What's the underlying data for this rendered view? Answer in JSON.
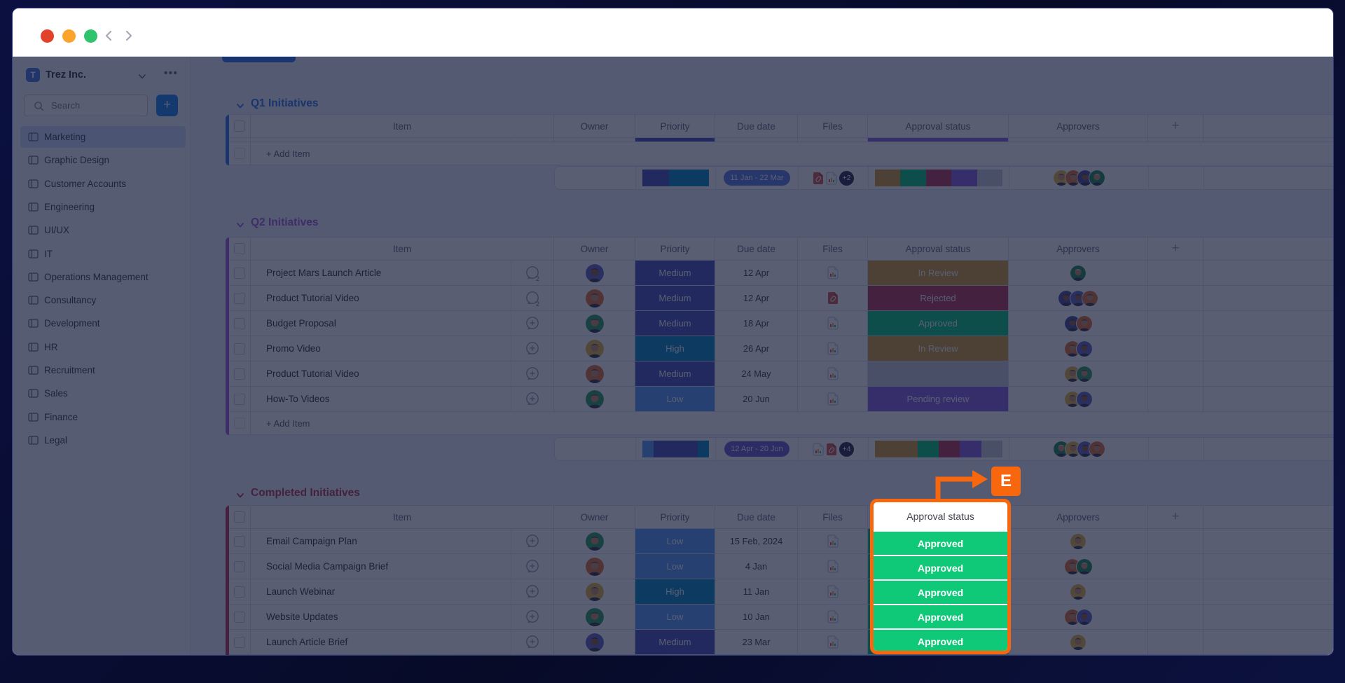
{
  "titlebar": {
    "traffic_lights": [
      "#E2422A",
      "#FBA42C",
      "#2EC36C"
    ],
    "nav_back": "back",
    "nav_forward": "forward"
  },
  "sidebar": {
    "workspace": {
      "initial": "T",
      "name": "Trez Inc."
    },
    "search": {
      "placeholder": "Search"
    },
    "add_button": "+",
    "items": [
      {
        "label": "Marketing",
        "active": true
      },
      {
        "label": "Graphic Design",
        "active": false
      },
      {
        "label": "Customer Accounts",
        "active": false
      },
      {
        "label": "Engineering",
        "active": false
      },
      {
        "label": "UI/UX",
        "active": false
      },
      {
        "label": "IT",
        "active": false
      },
      {
        "label": "Operations Management",
        "active": false
      },
      {
        "label": "Consultancy",
        "active": false
      },
      {
        "label": "Development",
        "active": false
      },
      {
        "label": "HR",
        "active": false
      },
      {
        "label": "Recruitment",
        "active": false
      },
      {
        "label": "Sales",
        "active": false
      },
      {
        "label": "Finance",
        "active": false
      },
      {
        "label": "Legal",
        "active": false
      }
    ]
  },
  "board": {
    "columns": [
      "Item",
      "Owner",
      "Priority",
      "Due date",
      "Files",
      "Approval status",
      "Approvers",
      "+"
    ],
    "add_item_label": "+ Add Item",
    "palette": {
      "priority": {
        "Low": "#579BFC",
        "Medium": "#464DBA",
        "High": "#0086C0"
      },
      "status": {
        "In Review": "#D69A2E",
        "Rejected": "#BB3354",
        "Approved": "#00C875",
        "Pending review": "#8A5FE3",
        "": "#C9CDD6"
      },
      "avatars": {
        "green": "#2E9E5B",
        "orange": "#E0702D",
        "purple": "#5F63C3",
        "yellow": "#E5B63C",
        "navy": "#454A96",
        "hijab": "#1C8A52"
      }
    },
    "groups": [
      {
        "name": "Q1 Initiatives",
        "color": "#2B76E5",
        "collapsed_strip": {
          "Priority": "#464DBA",
          "Approval status": "#8A5FE3"
        },
        "rows": [],
        "summary": {
          "priority_bar": [
            {
              "color": "#464DBA",
              "pct": 40
            },
            {
              "color": "#0086C0",
              "pct": 60
            }
          ],
          "timeline": {
            "label": "11 Jan - 22 Mar",
            "color": "#5A7DE3"
          },
          "files": {
            "icons": [
              "red",
              "img"
            ],
            "more": "+2"
          },
          "status_bar": [
            {
              "color": "#D69A2E",
              "pct": 20
            },
            {
              "color": "#00C875",
              "pct": 20
            },
            {
              "color": "#BB3354",
              "pct": 20
            },
            {
              "color": "#8A5FE3",
              "pct": 20
            },
            {
              "color": "#C9CDD6",
              "pct": 20
            }
          ],
          "approvers": [
            "yellow",
            "orange",
            "navy",
            "hijab"
          ]
        }
      },
      {
        "name": "Q2 Initiatives",
        "color": "#A25DDC",
        "rows": [
          {
            "item": "Project Mars Launch Article",
            "bubble": "chat2",
            "owner": "purple",
            "priority": "Medium",
            "due": "12 Apr",
            "file": "img",
            "status": "In Review",
            "approvers": [
              "hijab"
            ]
          },
          {
            "item": "Product Tutorial Video",
            "bubble": "chat2",
            "owner": "orange",
            "priority": "Medium",
            "due": "12 Apr",
            "file": "red",
            "status": "Rejected",
            "approvers": [
              "navy",
              "purple",
              "orange"
            ]
          },
          {
            "item": "Budget Proposal",
            "bubble": "plus",
            "owner": "green",
            "priority": "Medium",
            "due": "18 Apr",
            "file": "img",
            "status": "Approved",
            "approvers": [
              "navy",
              "orange"
            ]
          },
          {
            "item": "Promo Video",
            "bubble": "plus",
            "owner": "yellow",
            "priority": "High",
            "due": "26 Apr",
            "file": "img",
            "status": "In Review",
            "approvers": [
              "orange",
              "purple"
            ]
          },
          {
            "item": "Product Tutorial Video",
            "bubble": "plus",
            "owner": "orange",
            "priority": "Medium",
            "due": "24 May",
            "file": "img",
            "status": "",
            "approvers": [
              "yellow",
              "green"
            ]
          },
          {
            "item": "How-To Videos",
            "bubble": "plus",
            "owner": "green",
            "priority": "Low",
            "due": "20 Jun",
            "file": "img",
            "status": "Pending review",
            "approvers": [
              "yellow",
              "purple"
            ]
          }
        ],
        "summary": {
          "priority_bar": [
            {
              "color": "#579BFC",
              "pct": 17
            },
            {
              "color": "#464DBA",
              "pct": 66
            },
            {
              "color": "#0086C0",
              "pct": 17
            }
          ],
          "timeline": {
            "label": "12 Apr - 20 Jun",
            "color": "#6C5BD2"
          },
          "files": {
            "icons": [
              "img",
              "red"
            ],
            "more": "+4"
          },
          "status_bar": [
            {
              "color": "#D69A2E",
              "pct": 33.4
            },
            {
              "color": "#00C875",
              "pct": 16.65
            },
            {
              "color": "#BB3354",
              "pct": 16.65
            },
            {
              "color": "#8A5FE3",
              "pct": 16.65
            },
            {
              "color": "#C9CDD6",
              "pct": 16.65
            }
          ],
          "approvers": [
            "hijab",
            "yellow",
            "purple",
            "orange"
          ]
        }
      },
      {
        "name": "Completed Initiatives",
        "color": "#BB3354",
        "rows": [
          {
            "item": "Email Campaign Plan",
            "bubble": "plus",
            "owner": "green",
            "priority": "Low",
            "due": "15 Feb, 2024",
            "file": "img",
            "status": "Approved",
            "approvers": [
              "yellow"
            ]
          },
          {
            "item": "Social Media Campaign Brief",
            "bubble": "plus",
            "owner": "orange",
            "priority": "Low",
            "due": "4 Jan",
            "file": "img",
            "status": "Approved",
            "approvers": [
              "orange",
              "hijab"
            ]
          },
          {
            "item": "Launch Webinar",
            "bubble": "plus",
            "owner": "yellow",
            "priority": "High",
            "due": "11 Jan",
            "file": "img",
            "status": "Approved",
            "approvers": [
              "yellow"
            ]
          },
          {
            "item": "Website Updates",
            "bubble": "plus",
            "owner": "green",
            "priority": "Low",
            "due": "10 Jan",
            "file": "img",
            "status": "Approved",
            "approvers": [
              "orange",
              "purple"
            ]
          },
          {
            "item": "Launch Article Brief",
            "bubble": "plus",
            "owner": "purple",
            "priority": "Medium",
            "due": "23 Mar",
            "file": "img",
            "status": "Approved",
            "approvers": [
              "yellow"
            ]
          }
        ]
      }
    ]
  },
  "annotation": {
    "letter": "E",
    "highlight_header": "Approval status",
    "highlight_cells": [
      "Approved",
      "Approved",
      "Approved",
      "Approved",
      "Approved"
    ],
    "color": "#F8660D",
    "cell_color": "#10C978"
  }
}
